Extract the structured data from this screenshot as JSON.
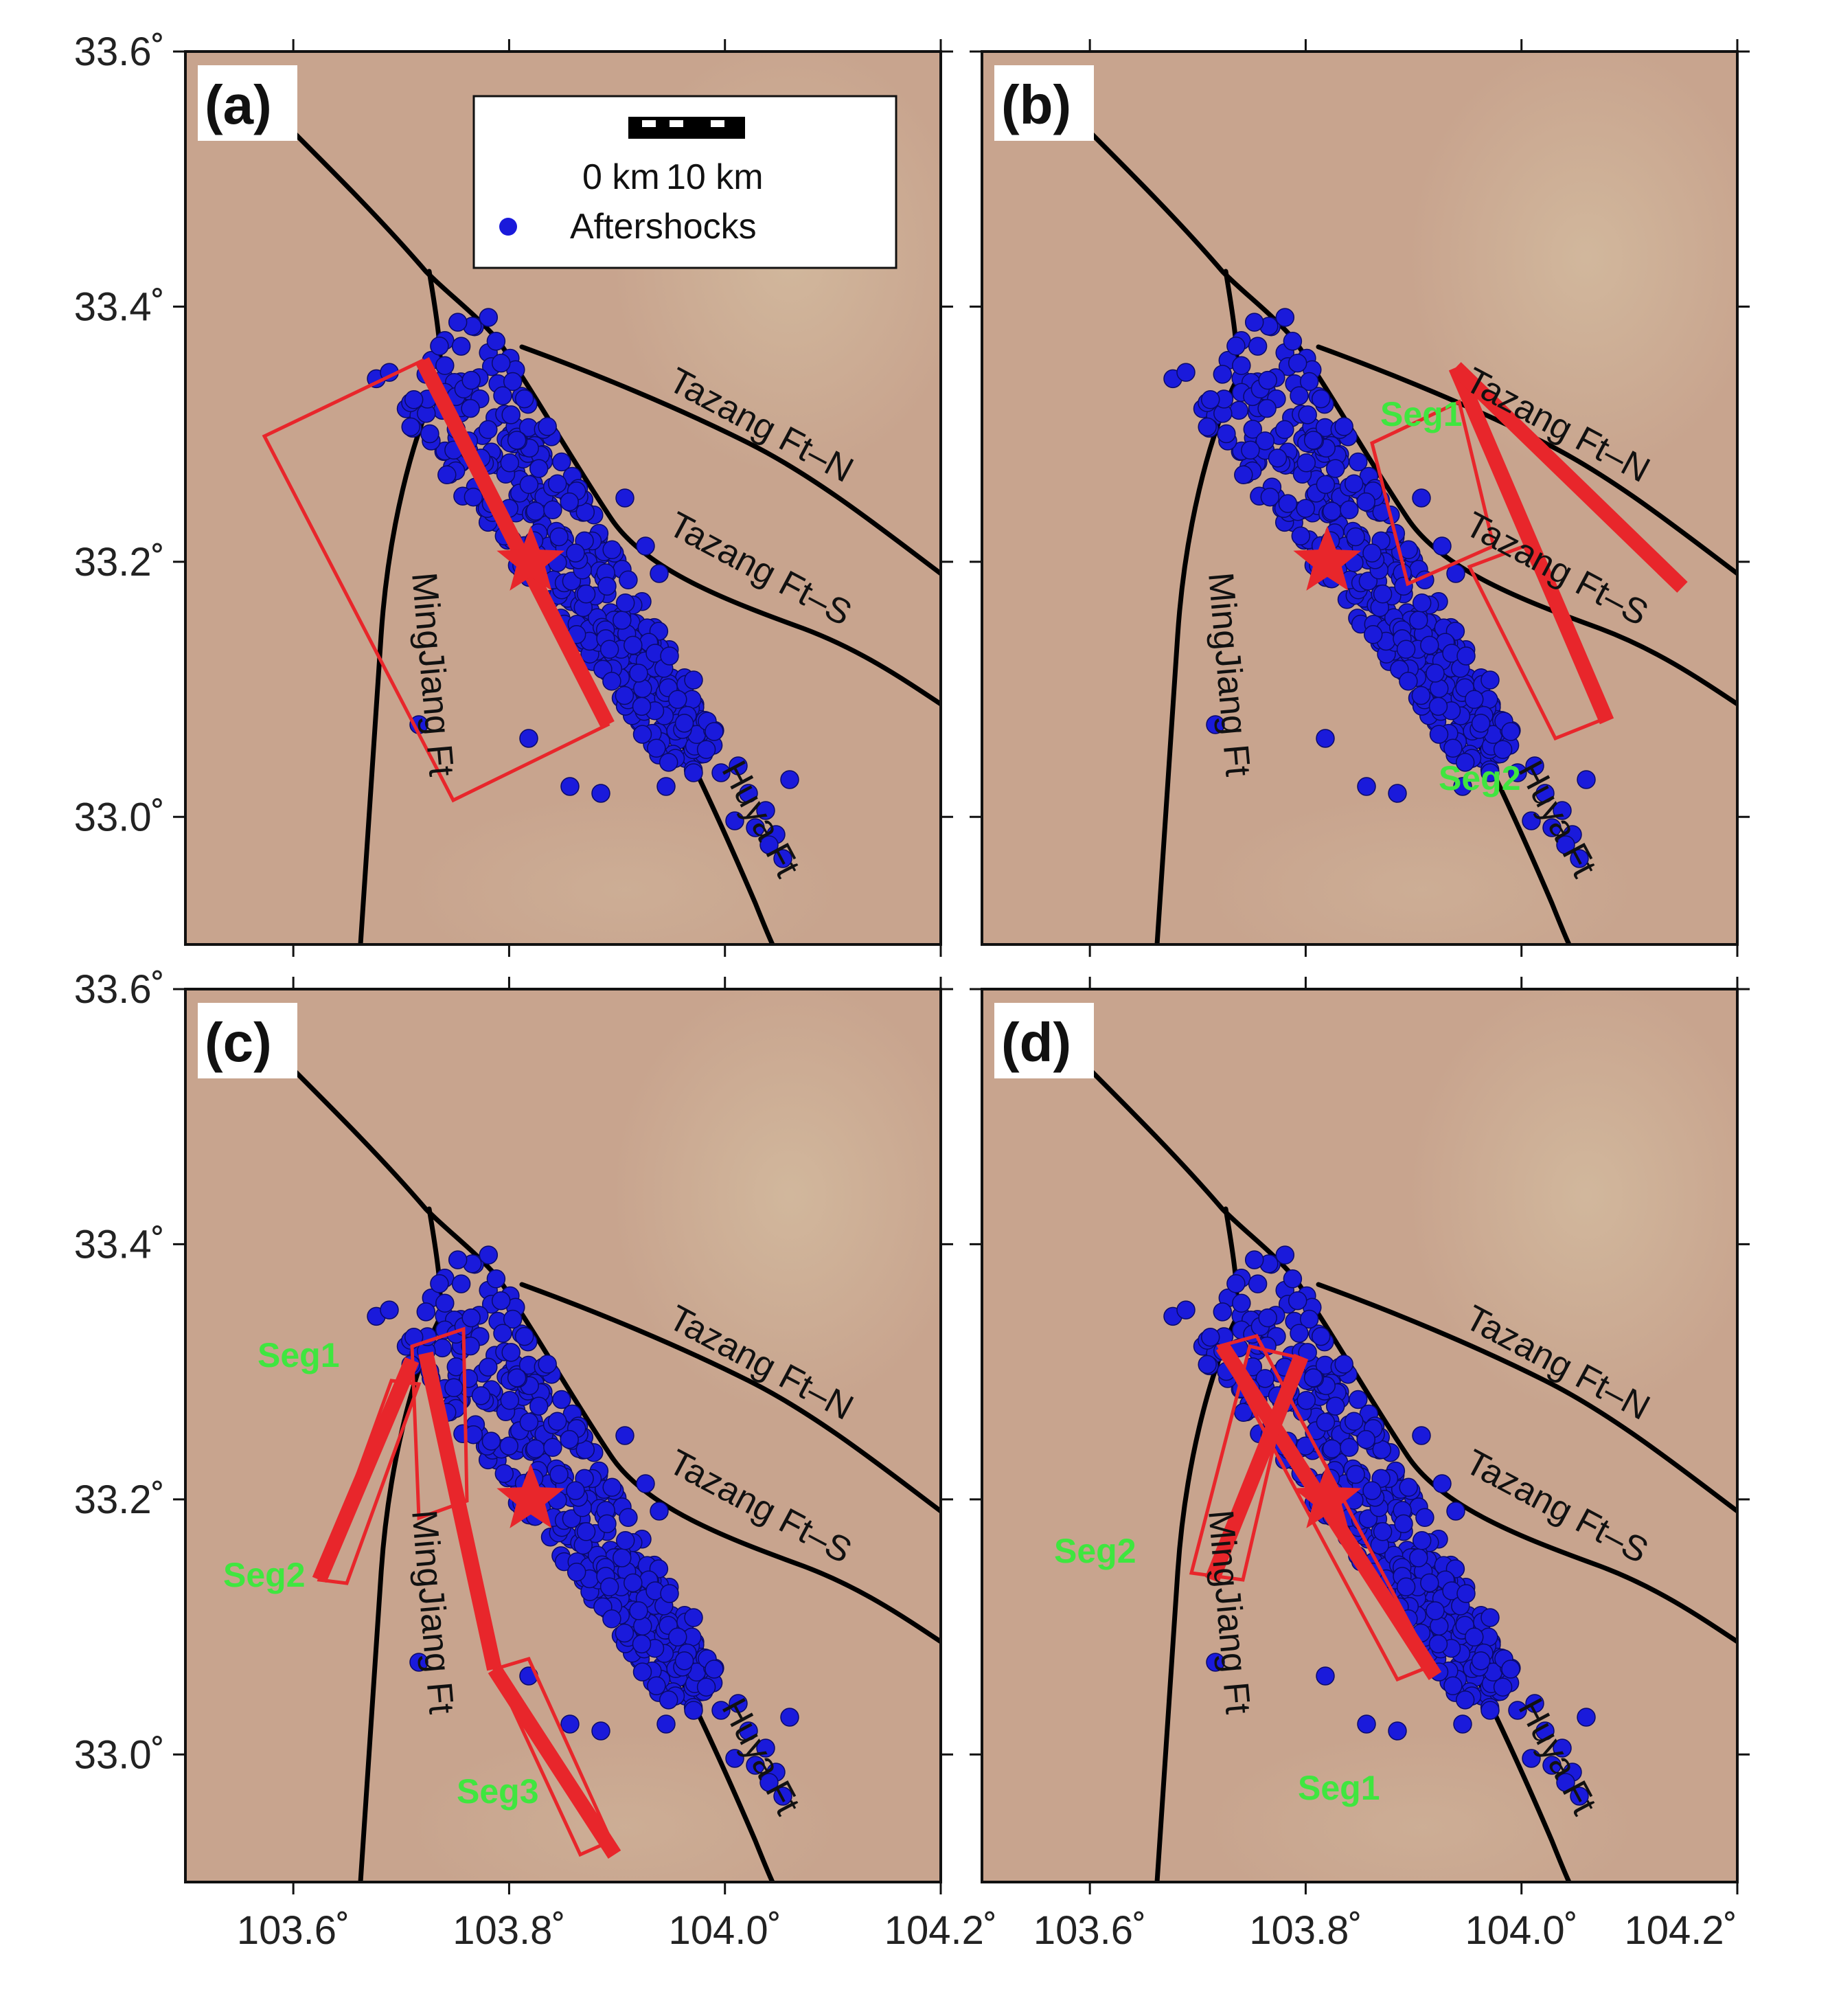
{
  "figure": {
    "axes": {
      "x_ticks": [
        "103.6˚",
        "103.8˚",
        "104.0˚",
        "104.2˚"
      ],
      "y_ticks": [
        "33.6˚",
        "33.4˚",
        "33.2˚",
        "33.0˚"
      ],
      "x_range": [
        103.5,
        104.2
      ],
      "y_range": [
        32.9,
        33.6
      ]
    },
    "legend": {
      "scale_left": "0 km",
      "scale_right": "10 km",
      "aftershocks_label": "Aftershocks"
    },
    "faults": {
      "tazang_n": "Tazang Ft–N",
      "tazang_s": "Tazang Ft–S",
      "mingjiang": "MingJiang Ft",
      "huya": "Huya Ft"
    },
    "epicenter": {
      "lon": 103.82,
      "lat": 33.2
    },
    "panels": [
      {
        "id": "a",
        "label": "(a)",
        "segments": []
      },
      {
        "id": "b",
        "label": "(b)",
        "segments": [
          "Seg1",
          "Seg2"
        ]
      },
      {
        "id": "c",
        "label": "(c)",
        "segments": [
          "Seg1",
          "Seg2",
          "Seg3"
        ]
      },
      {
        "id": "d",
        "label": "(d)",
        "segments": [
          "Seg2",
          "Seg1"
        ]
      }
    ],
    "colors": {
      "terrain": "#c8a48e",
      "fault": "#000000",
      "aftershock": "#1a1adb",
      "rupture": "#e8262b",
      "segment_label": "#3fe63f"
    }
  }
}
